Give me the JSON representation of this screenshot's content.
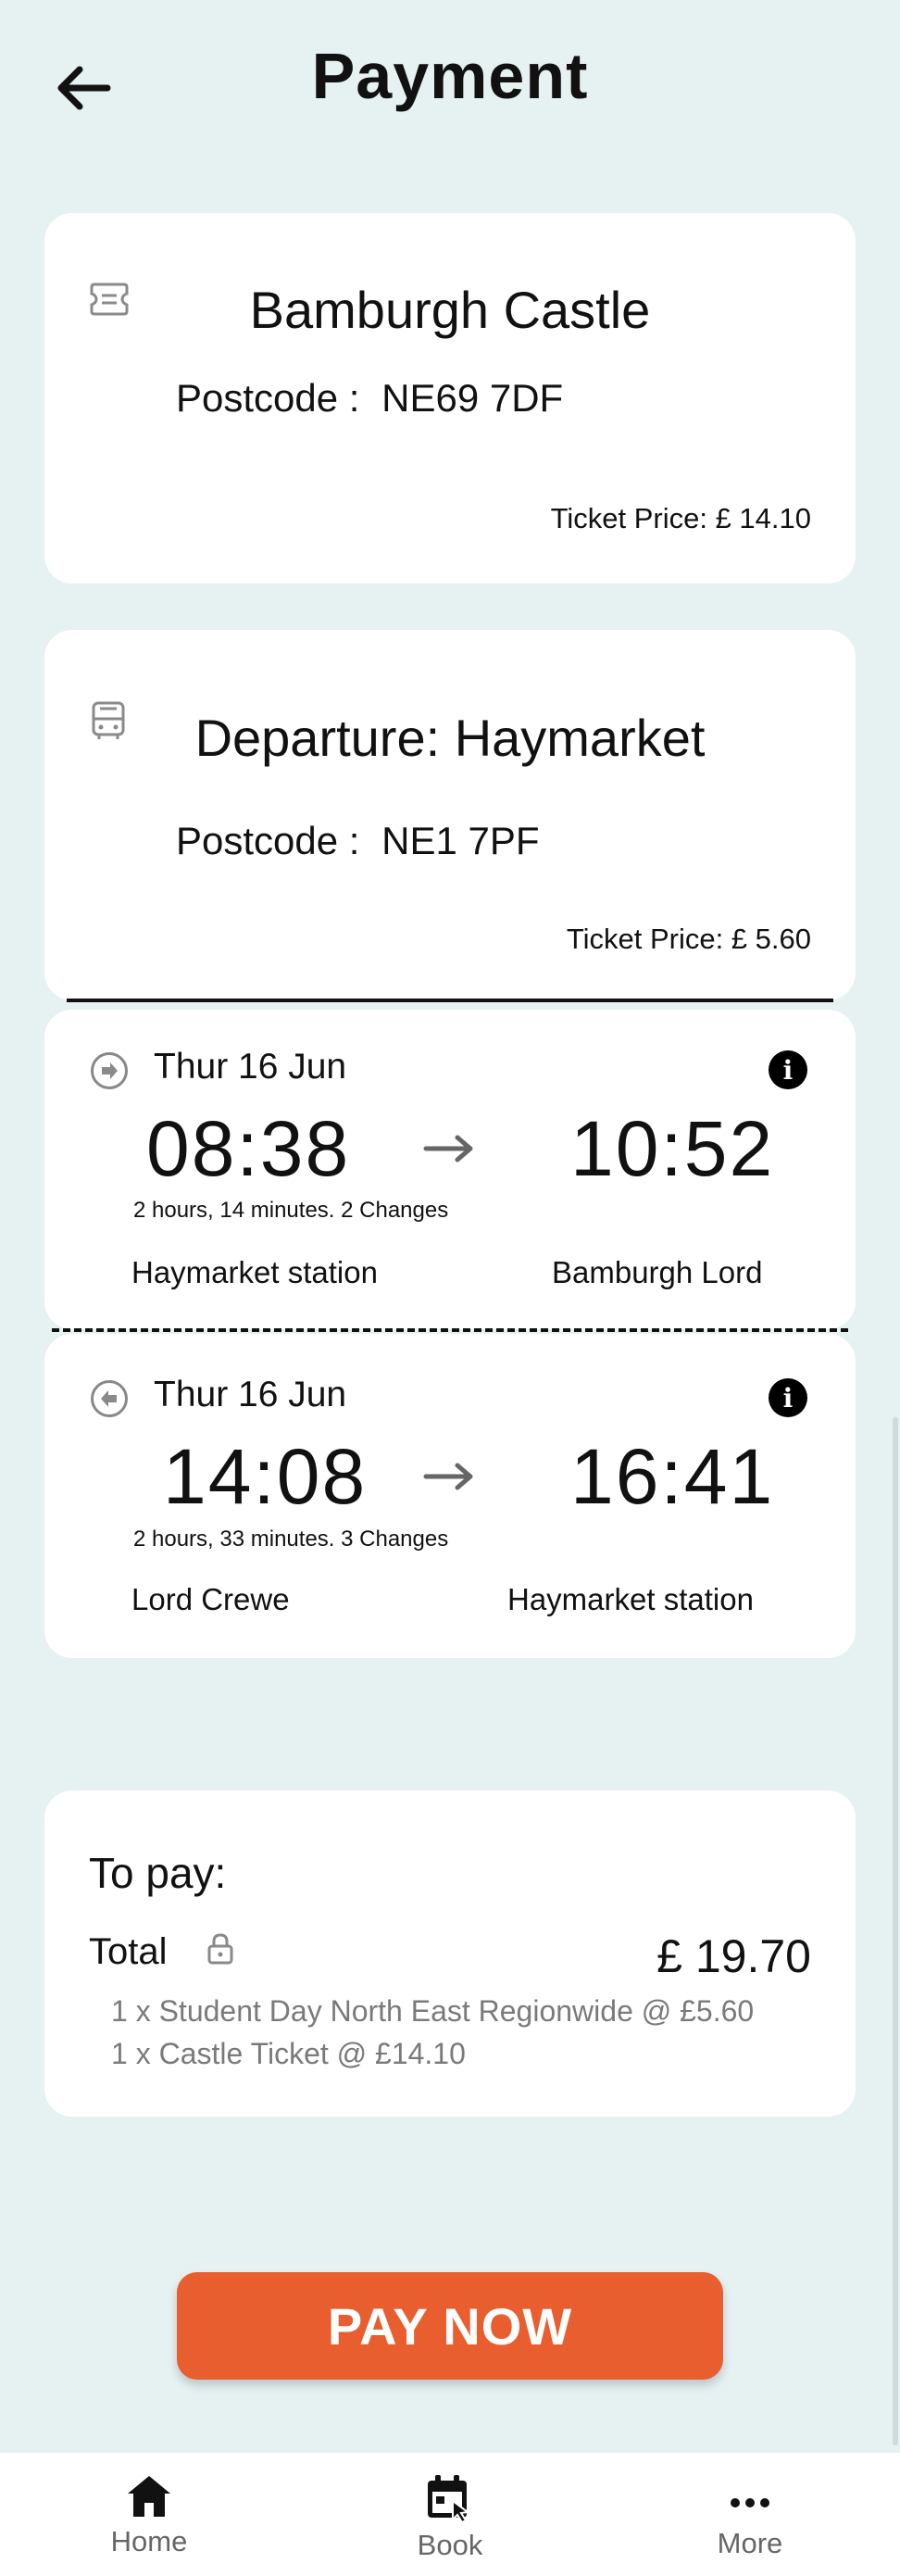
{
  "header": {
    "title": "Payment"
  },
  "destination": {
    "name": "Bamburgh Castle",
    "postcode_label": "Postcode :",
    "postcode": "NE69 7DF",
    "ticket_price": "Ticket Price: £ 14.10"
  },
  "departure": {
    "name": "Departure: Haymarket",
    "postcode_label": "Postcode :",
    "postcode": "NE1 7PF",
    "ticket_price": "Ticket Price: £ 5.60"
  },
  "outbound": {
    "date": "Thur 16 Jun",
    "depart_time": "08:38",
    "arrive_time": "10:52",
    "duration": "2 hours, 14 minutes. 2 Changes",
    "from": "Haymarket station",
    "to": "Bamburgh Lord"
  },
  "return": {
    "date": "Thur 16 Jun",
    "depart_time": "14:08",
    "arrive_time": "16:41",
    "duration": "2 hours, 33 minutes. 3 Changes",
    "from": "Lord Crewe",
    "to": "Haymarket station"
  },
  "summary": {
    "heading": "To pay:",
    "total_label": "Total",
    "total_value": "£ 19.70",
    "items": [
      "1 x Student Day North East Regionwide @ £5.60",
      "1 x Castle Ticket @ £14.10"
    ]
  },
  "pay_button": "PAY NOW",
  "nav": {
    "items": [
      {
        "label": "Home",
        "icon": "home-icon"
      },
      {
        "label": "Book",
        "icon": "book-calendar-icon"
      },
      {
        "label": "More",
        "icon": "more-icon"
      }
    ]
  },
  "colors": {
    "background": "#e6f1f2",
    "accent": "#e85e2f"
  }
}
